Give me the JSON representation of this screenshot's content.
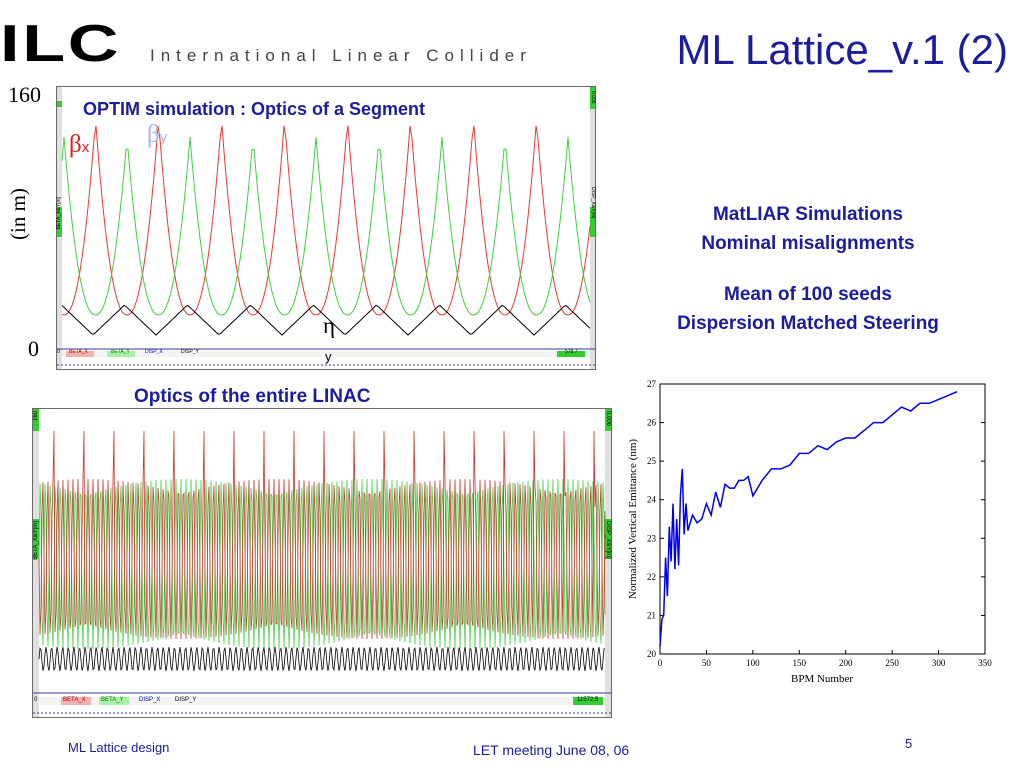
{
  "header": {
    "logo_main": "ILC",
    "logo_sub": "International Linear Collider",
    "title": "ML Lattice_v.1 (2)"
  },
  "segment_plot": {
    "ymax_label": "160",
    "ymin_label": "0",
    "unit_label": "(in m)",
    "heading": "OPTIM simulation : Optics of a Segment",
    "beta_x_symbol": "β",
    "beta_x_sub": "x",
    "beta_y_symbol": "β",
    "beta_y_sub": "y",
    "eta_symbol": "η",
    "eta_sub": "y",
    "legend": [
      "BETA_X",
      "BETA_Y",
      "DISP_X",
      "DISP_Y"
    ],
    "left_axis_tag": "BETA_X&Y[m]",
    "right_axis_tag": "DISP_X&Y[m]",
    "x_end": "578.7",
    "x_start": "0",
    "y_right_top": "0.006"
  },
  "linac_plot": {
    "heading": "Optics of the entire LINAC",
    "legend": [
      "BETA_X",
      "BETA_Y",
      "DISP_X",
      "DISP_Y"
    ],
    "left_axis_tag": "BETA_X&Y[m]",
    "right_axis_tag": "DISP_X&Y[m]",
    "x_end": "11572.5",
    "x_start": "0",
    "y_left_top": "160",
    "y_right_top": "0.006"
  },
  "notes": {
    "line1": "MatLIAR Simulations",
    "line2": "Nominal misalignments",
    "line3": "Mean of 100 seeds",
    "line4": "Dispersion Matched Steering"
  },
  "footer": {
    "left": "ML Lattice design",
    "center": "LET meeting June 08, 06",
    "page": "5"
  },
  "colors": {
    "title_blue": "#1c1c9c",
    "beta_x": "#e8383a",
    "beta_y": "#40d040",
    "disp": "#000000",
    "emittance_line": "#0000ee"
  },
  "chart_data": {
    "type": "line",
    "xlabel": "BPM Number",
    "ylabel": "Normalized Vertical Emittance (nm)",
    "xlim": [
      0,
      350
    ],
    "ylim": [
      20,
      27
    ],
    "xticks": [
      0,
      50,
      100,
      150,
      200,
      250,
      300,
      350
    ],
    "yticks": [
      20,
      21,
      22,
      23,
      24,
      25,
      26,
      27
    ],
    "series": [
      {
        "x": [
          0,
          2,
          4,
          6,
          8,
          10,
          12,
          14,
          16,
          18,
          20,
          22,
          24,
          26,
          28,
          30,
          35,
          40,
          45,
          50,
          55,
          60,
          65,
          70,
          75,
          80,
          85,
          90,
          95,
          100,
          110,
          120,
          130,
          140,
          150,
          160,
          170,
          180,
          190,
          200,
          210,
          220,
          230,
          240,
          250,
          260,
          270,
          280,
          290,
          300,
          310,
          320
        ],
        "y": [
          20.2,
          20.9,
          21.0,
          22.5,
          21.5,
          23.3,
          22.4,
          23.9,
          22.2,
          23.5,
          22.3,
          24.1,
          24.8,
          23.1,
          23.9,
          23.2,
          23.6,
          23.4,
          23.5,
          23.9,
          23.6,
          24.2,
          23.8,
          24.4,
          24.3,
          24.3,
          24.5,
          24.5,
          24.6,
          24.1,
          24.5,
          24.8,
          24.8,
          24.9,
          25.2,
          25.2,
          25.4,
          25.3,
          25.5,
          25.6,
          25.6,
          25.8,
          26.0,
          26.0,
          26.2,
          26.4,
          26.3,
          26.5,
          26.5,
          26.6,
          26.7,
          26.8
        ]
      }
    ]
  }
}
